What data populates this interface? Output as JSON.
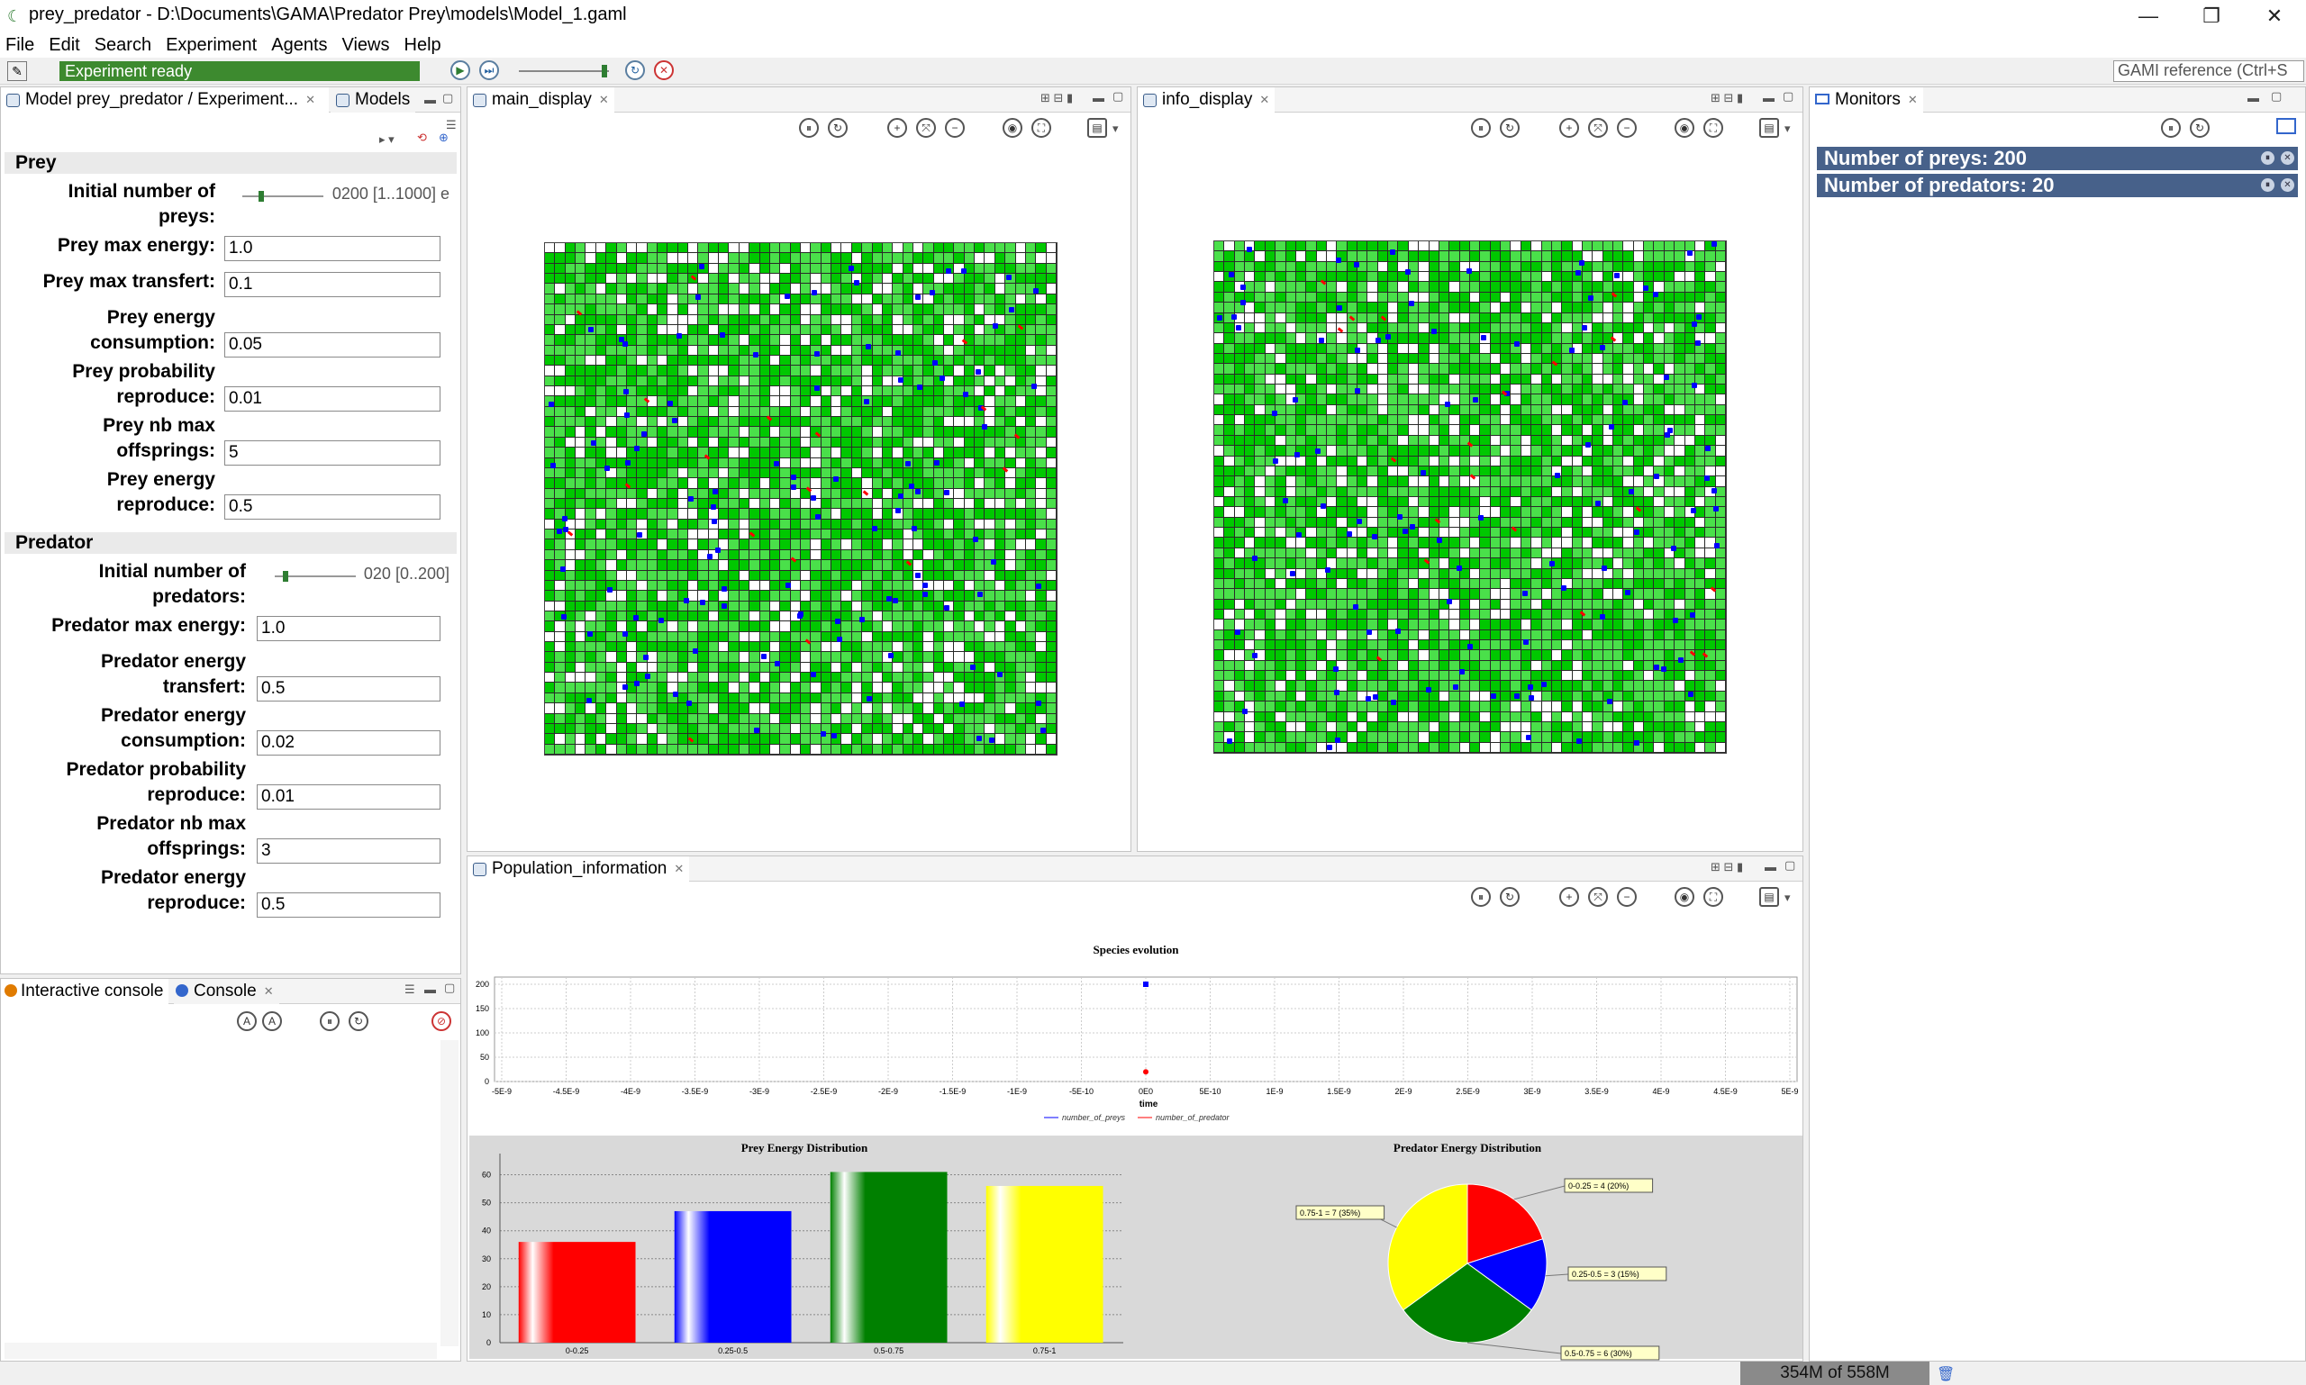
{
  "window": {
    "title": "prey_predator - D:\\Documents\\GAMA\\Predator Prey\\models\\Model_1.gaml",
    "controls": [
      "—",
      "❐",
      "✕"
    ]
  },
  "menu": [
    "File",
    "Edit",
    "Search",
    "Experiment",
    "Agents",
    "Views",
    "Help"
  ],
  "toolbar": {
    "status": "Experiment ready",
    "reference": "GAMI reference (Ctrl+S"
  },
  "params_panel": {
    "tab_title": "Model prey_predator / Experiment...",
    "tab_models": "Models",
    "sections": [
      {
        "title": "Prey"
      },
      {
        "title": "Predator"
      }
    ],
    "prey": [
      {
        "label_l1": "Initial number of",
        "label_l2": "preys:",
        "type": "slider",
        "value": "0200 [1..1000] e",
        "fraction": 0.2
      },
      {
        "label_l1": "Prey max energy:",
        "label_l2": "",
        "type": "input",
        "value": "1.0"
      },
      {
        "label_l1": "Prey max transfert:",
        "label_l2": "",
        "type": "input",
        "value": "0.1"
      },
      {
        "label_l1": "Prey energy",
        "label_l2": "consumption:",
        "type": "input",
        "value": "0.05"
      },
      {
        "label_l1": "Prey probability",
        "label_l2": "reproduce:",
        "type": "input",
        "value": "0.01"
      },
      {
        "label_l1": "Prey nb max",
        "label_l2": "offsprings:",
        "type": "input",
        "value": "5"
      },
      {
        "label_l1": "Prey energy",
        "label_l2": "reproduce:",
        "type": "input",
        "value": "0.5"
      }
    ],
    "predator": [
      {
        "label_l1": "Initial number of",
        "label_l2": "predators:",
        "type": "slider",
        "value": "020 [0..200]",
        "fraction": 0.1
      },
      {
        "label_l1": "Predator max energy:",
        "label_l2": "",
        "type": "input",
        "value": "1.0"
      },
      {
        "label_l1": "Predator energy",
        "label_l2": "transfert:",
        "type": "input",
        "value": "0.5"
      },
      {
        "label_l1": "Predator energy",
        "label_l2": "consumption:",
        "type": "input",
        "value": "0.02"
      },
      {
        "label_l1": "Predator probability",
        "label_l2": "reproduce:",
        "type": "input",
        "value": "0.01"
      },
      {
        "label_l1": "Predator nb max",
        "label_l2": "offsprings:",
        "type": "input",
        "value": "3"
      },
      {
        "label_l1": "Predator energy",
        "label_l2": "reproduce:",
        "type": "input",
        "value": "0.5"
      }
    ]
  },
  "console_panel": {
    "tab_interactive": "Interactive console",
    "tab_console": "Console"
  },
  "displays": {
    "main": {
      "title": "main_display"
    },
    "info": {
      "title": "info_display"
    },
    "population": {
      "title": "Population_information"
    }
  },
  "monitors": {
    "tab": "Monitors",
    "items": [
      {
        "label": "Number of preys:  200"
      },
      {
        "label": "Number of predators:  20"
      }
    ]
  },
  "colors": {
    "grass_dark": "#00c800",
    "grass_mid": "#4ae04a",
    "grass_light": "#ffffff",
    "prey": "#0000ff",
    "predator": "#ff0000"
  },
  "chart_data": [
    {
      "type": "line",
      "title": "Species evolution",
      "xlabel": "time",
      "ylabel": "",
      "x_ticks": [
        "-5E-9",
        "-4.5E-9",
        "-4E-9",
        "-3.5E-9",
        "-3E-9",
        "-2.5E-9",
        "-2E-9",
        "-1.5E-9",
        "-1E-9",
        "-5E-10",
        "0E0",
        "5E-10",
        "1E-9",
        "1.5E-9",
        "2E-9",
        "2.5E-9",
        "3E-9",
        "3.5E-9",
        "4E-9",
        "4.5E-9",
        "5E-9"
      ],
      "y_ticks": [
        "0",
        "50",
        "100",
        "150",
        "200"
      ],
      "ylim": [
        0,
        200
      ],
      "xlim": [
        -5e-09,
        5e-09
      ],
      "series": [
        {
          "name": "number_of_preys",
          "x": [
            0
          ],
          "y": [
            200
          ],
          "color": "#0000ff"
        },
        {
          "name": "number_of_predator",
          "x": [
            0
          ],
          "y": [
            20
          ],
          "color": "#ff0000"
        }
      ],
      "legend_position": "bottom"
    },
    {
      "type": "bar",
      "title": "Prey Energy Distribution",
      "categories": [
        "0-0.25",
        "0.25-0.5",
        "0.5-0.75",
        "0.75-1"
      ],
      "values": [
        36,
        47,
        61,
        56
      ],
      "colors": [
        "#ff0000",
        "#0000ff",
        "#008000",
        "#ffff00"
      ],
      "y_ticks": [
        "0",
        "10",
        "20",
        "30",
        "40",
        "50",
        "60"
      ],
      "ylim": [
        0,
        65
      ]
    },
    {
      "type": "pie",
      "title": "Predator Energy Distribution",
      "slices": [
        {
          "label": "0-0.25 = 4 (20%)",
          "value": 4,
          "color": "#ff0000"
        },
        {
          "label": "0.25-0.5 = 3 (15%)",
          "value": 3,
          "color": "#0000ff"
        },
        {
          "label": "0.5-0.75 = 6 (30%)",
          "value": 6,
          "color": "#008000"
        },
        {
          "label": "0.75-1 = 7 (35%)",
          "value": 7,
          "color": "#ffff00"
        }
      ]
    }
  ],
  "memory": "354M of 558M"
}
